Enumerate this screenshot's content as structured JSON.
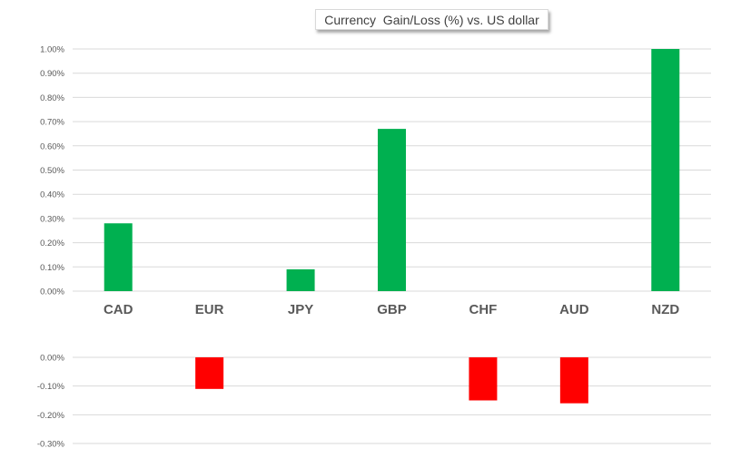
{
  "chart_data": [
    {
      "type": "bar",
      "title": "Currency  Gain/Loss (%) vs. US dollar",
      "categories": [
        "CAD",
        "EUR",
        "JPY",
        "GBP",
        "CHF",
        "AUD",
        "NZD"
      ],
      "series": [
        {
          "values": [
            0.28,
            null,
            0.09,
            0.67,
            null,
            null,
            1.0
          ],
          "color": "#00b050"
        }
      ],
      "ylim": [
        0,
        1.0
      ],
      "yticks": [
        "1.00%",
        "0.90%",
        "0.80%",
        "0.70%",
        "0.60%",
        "0.50%",
        "0.40%",
        "0.30%",
        "0.20%",
        "0.10%",
        "0.00%"
      ],
      "grid": true,
      "xlabel": "",
      "ylabel": ""
    },
    {
      "type": "bar",
      "categories": [
        "CAD",
        "EUR",
        "JPY",
        "GBP",
        "CHF",
        "AUD",
        "NZD"
      ],
      "series": [
        {
          "values": [
            null,
            -0.11,
            null,
            null,
            -0.15,
            -0.16,
            null
          ],
          "color": "#ff0000"
        }
      ],
      "ylim": [
        -0.3,
        0
      ],
      "yticks": [
        "0.00%",
        "-0.10%",
        "-0.20%",
        "-0.30%"
      ],
      "grid": true,
      "xlabel": "",
      "ylabel": ""
    }
  ]
}
